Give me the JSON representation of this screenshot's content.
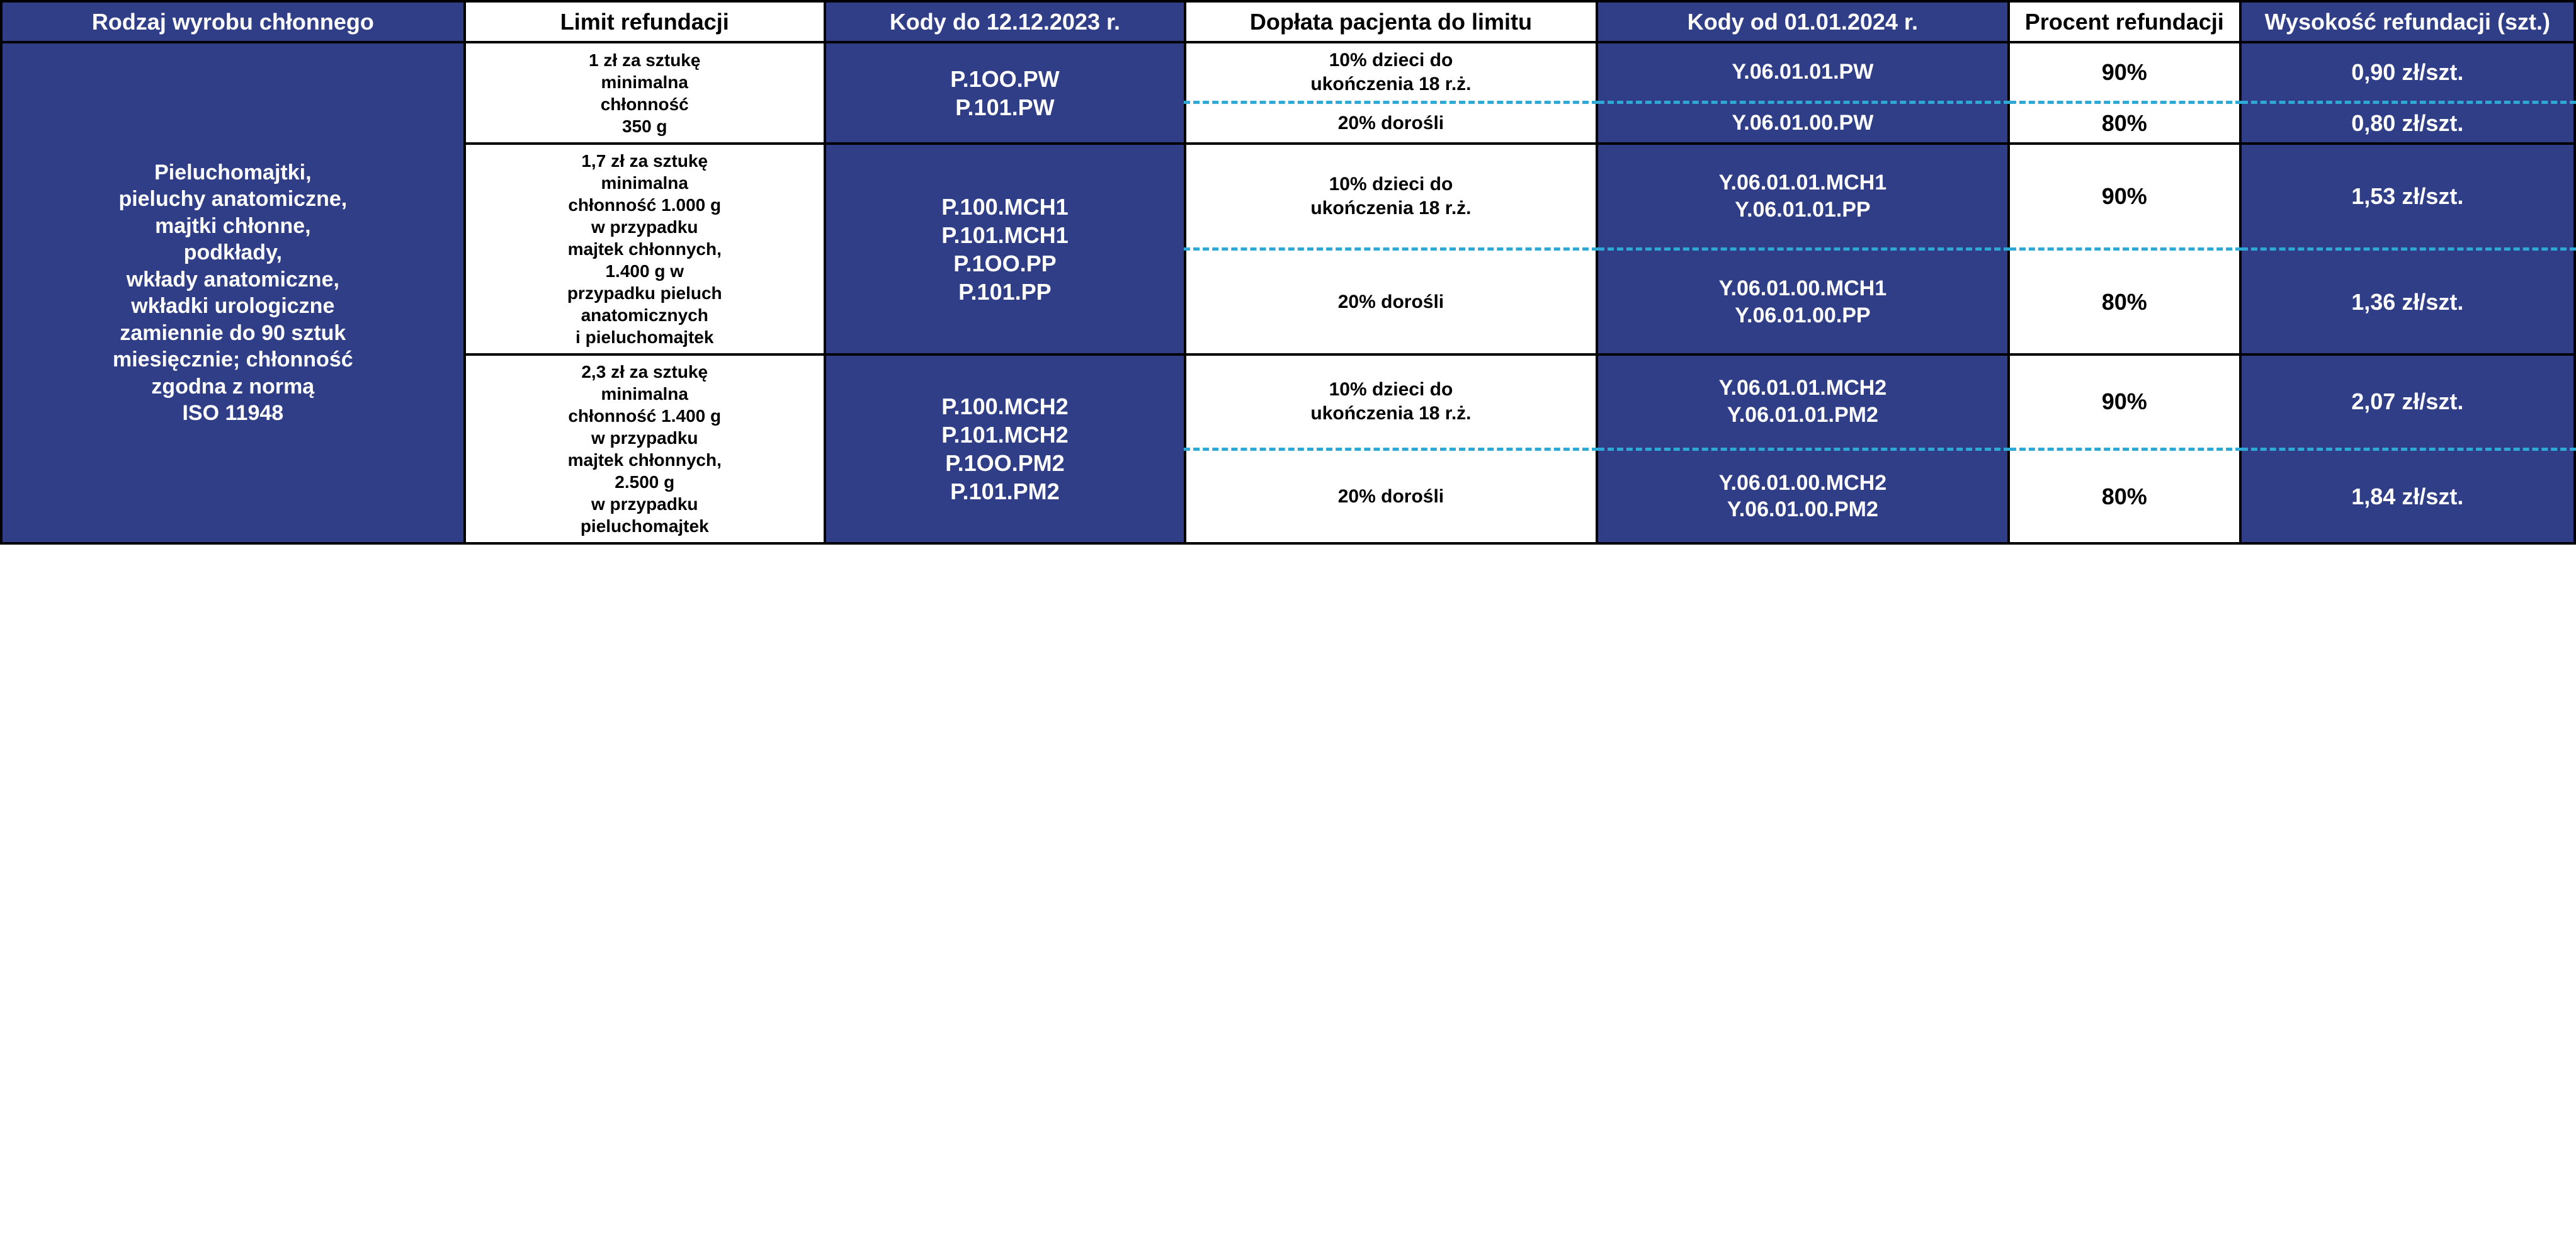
{
  "colors": {
    "blue_bg": "#2f3e86",
    "white_bg": "#ffffff",
    "text_on_blue": "#ffffff",
    "text_on_white": "#000000",
    "dashed_divider": "#2ea9d6",
    "solid_border": "#000000"
  },
  "headers": {
    "product": "Rodzaj wyrobu chłonnego",
    "limit": "Limit refundacji",
    "codes_old": "Kody do 12.12.2023 r.",
    "doplata": "Dopłata pacjenta do limitu",
    "codes_new": "Kody od 01.01.2024 r.",
    "percent": "Procent refundacji",
    "amount": "Wysokość refundacji (szt.)"
  },
  "product_type": "Pieluchomajtki,\npieluchy anatomiczne,\nmajtki chłonne,\npodkłady,\nwkłady anatomiczne,\nwkładki urologiczne\nzamiennie do 90 sztuk\nmiesięcznie; chłonność\nzgodna z normą\nISO 11948",
  "groups": [
    {
      "limit": "1 zł za sztukę\nminimalna\nchłonność\n350 g",
      "codes_old": "P.1OO.PW\nP.101.PW",
      "rows": [
        {
          "doplata": "10% dzieci do\nukończenia 18 r.ż.",
          "codes_new": "Y.06.01.01.PW",
          "percent": "90%",
          "amount": "0,90 zł/szt."
        },
        {
          "doplata": "20% dorośli",
          "codes_new": "Y.06.01.00.PW",
          "percent": "80%",
          "amount": "0,80 zł/szt."
        }
      ]
    },
    {
      "limit": "1,7 zł za sztukę\nminimalna\nchłonność 1.000 g\nw przypadku\nmajtek chłonnych,\n1.400 g w\nprzypadku pieluch\nanatomicznych\ni pieluchomajtek",
      "codes_old": "P.100.MCH1\nP.101.MCH1\nP.1OO.PP\nP.101.PP",
      "rows": [
        {
          "doplata": "10% dzieci do\nukończenia 18 r.ż.",
          "codes_new": "Y.06.01.01.MCH1\nY.06.01.01.PP",
          "percent": "90%",
          "amount": "1,53 zł/szt."
        },
        {
          "doplata": "20% dorośli",
          "codes_new": "Y.06.01.00.MCH1\nY.06.01.00.PP",
          "percent": "80%",
          "amount": "1,36 zł/szt."
        }
      ]
    },
    {
      "limit": "2,3 zł za sztukę\nminimalna\nchłonność 1.400 g\nw przypadku\nmajtek chłonnych,\n2.500 g\nw przypadku\npieluchomajtek",
      "codes_old": "P.100.MCH2\nP.101.MCH2\nP.1OO.PM2\nP.101.PM2",
      "rows": [
        {
          "doplata": "10% dzieci do\nukończenia 18 r.ż.",
          "codes_new": "Y.06.01.01.MCH2\nY.06.01.01.PM2",
          "percent": "90%",
          "amount": "2,07 zł/szt."
        },
        {
          "doplata": "20% dorośli",
          "codes_new": "Y.06.01.00.MCH2\nY.06.01.00.PM2",
          "percent": "80%",
          "amount": "1,84 zł/szt."
        }
      ]
    }
  ]
}
